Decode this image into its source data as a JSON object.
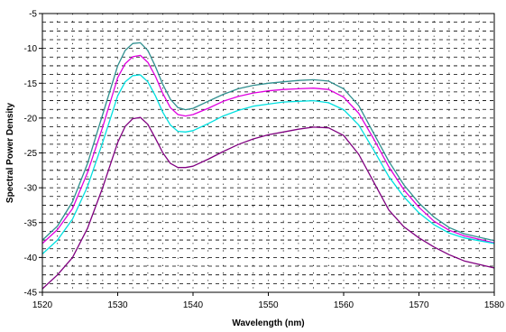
{
  "chart_data": {
    "type": "line",
    "title": "",
    "xlabel": "Wavelength (nm)",
    "ylabel": "Spectral Power Density",
    "xlim": [
      1520,
      1580
    ],
    "ylim": [
      -45,
      -5
    ],
    "x_ticks": [
      1520,
      1530,
      1540,
      1550,
      1560,
      1570,
      1580
    ],
    "y_ticks": [
      -5,
      -10,
      -15,
      -20,
      -25,
      -30,
      -35,
      -40,
      -45
    ],
    "grid": {
      "horizontal_dashed": true,
      "vertical_dashed": true
    },
    "legend": "none",
    "series": [
      {
        "color": "#2f8f8f",
        "x": [
          1520,
          1522,
          1524,
          1526,
          1528,
          1530,
          1531,
          1532,
          1533,
          1534,
          1535,
          1536,
          1537,
          1538,
          1539,
          1540,
          1542,
          1544,
          1546,
          1548,
          1550,
          1552,
          1554,
          1556,
          1558,
          1560,
          1562,
          1564,
          1566,
          1568,
          1570,
          1572,
          1574,
          1576,
          1578,
          1580
        ],
        "y": [
          -37.5,
          -35.5,
          -32,
          -26.5,
          -19.5,
          -12.5,
          -10.3,
          -9.3,
          -9.2,
          -10.3,
          -12.6,
          -15.2,
          -17.3,
          -18.5,
          -18.8,
          -18.6,
          -17.6,
          -16.6,
          -15.8,
          -15.3,
          -15,
          -14.8,
          -14.6,
          -14.5,
          -14.7,
          -15.8,
          -18.2,
          -22.2,
          -26.2,
          -29.6,
          -32.2,
          -34.2,
          -35.7,
          -36.6,
          -37.1,
          -37.6
        ]
      },
      {
        "color": "#e000e0",
        "x": [
          1520,
          1522,
          1524,
          1526,
          1528,
          1530,
          1531,
          1532,
          1533,
          1534,
          1535,
          1536,
          1537,
          1538,
          1539,
          1540,
          1542,
          1544,
          1546,
          1548,
          1550,
          1552,
          1554,
          1556,
          1558,
          1560,
          1562,
          1564,
          1566,
          1568,
          1570,
          1572,
          1574,
          1576,
          1578,
          1580
        ],
        "y": [
          -38,
          -36,
          -33,
          -27.8,
          -21.3,
          -14.2,
          -12.2,
          -11.2,
          -11,
          -12,
          -14,
          -16.5,
          -18.5,
          -19.5,
          -19.7,
          -19.5,
          -18.6,
          -17.6,
          -16.9,
          -16.4,
          -16.1,
          -15.9,
          -15.8,
          -15.7,
          -15.9,
          -17,
          -19.3,
          -23,
          -27,
          -30.3,
          -32.8,
          -34.8,
          -36.1,
          -36.9,
          -37.4,
          -37.9
        ]
      },
      {
        "color": "#00e0e0",
        "x": [
          1520,
          1522,
          1524,
          1526,
          1528,
          1530,
          1531,
          1532,
          1533,
          1534,
          1535,
          1536,
          1537,
          1538,
          1539,
          1540,
          1542,
          1544,
          1546,
          1548,
          1550,
          1552,
          1554,
          1556,
          1558,
          1560,
          1562,
          1564,
          1566,
          1568,
          1570,
          1572,
          1574,
          1576,
          1578,
          1580
        ],
        "y": [
          -39.5,
          -37.5,
          -34.5,
          -29.8,
          -23.5,
          -16.8,
          -14.8,
          -13.9,
          -13.8,
          -14.8,
          -16.8,
          -19.2,
          -21,
          -21.9,
          -22,
          -21.8,
          -20.8,
          -19.7,
          -18.9,
          -18.3,
          -18,
          -17.7,
          -17.6,
          -17.5,
          -17.8,
          -18.8,
          -21,
          -24.6,
          -28.4,
          -31.3,
          -33.6,
          -35.3,
          -36.5,
          -37.2,
          -37.6,
          -38
        ]
      },
      {
        "color": "#800080",
        "x": [
          1520,
          1522,
          1524,
          1526,
          1528,
          1530,
          1531,
          1532,
          1533,
          1534,
          1535,
          1536,
          1537,
          1538,
          1539,
          1540,
          1542,
          1544,
          1546,
          1548,
          1550,
          1552,
          1554,
          1556,
          1558,
          1560,
          1562,
          1564,
          1566,
          1568,
          1570,
          1572,
          1574,
          1576,
          1578,
          1580
        ],
        "y": [
          -44.5,
          -42.5,
          -40,
          -35.8,
          -30,
          -23.5,
          -21.2,
          -20.1,
          -19.9,
          -20.9,
          -22.9,
          -25,
          -26.5,
          -27.1,
          -27.1,
          -26.9,
          -25.9,
          -24.8,
          -23.8,
          -23,
          -22.4,
          -22,
          -21.6,
          -21.3,
          -21.4,
          -22.5,
          -25.2,
          -29.2,
          -33.2,
          -35.6,
          -37.2,
          -38.5,
          -39.6,
          -40.5,
          -41,
          -41.5
        ]
      }
    ]
  }
}
